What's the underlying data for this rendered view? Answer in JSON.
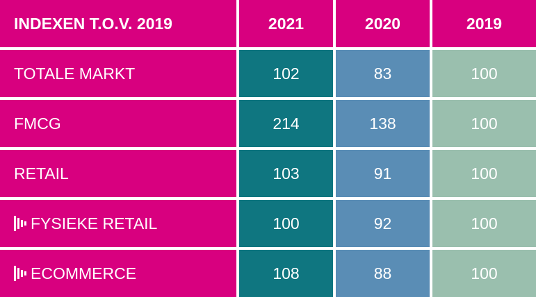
{
  "chart_data": {
    "type": "table",
    "title": "INDEXEN T.O.V. 2019",
    "columns": [
      "2021",
      "2020",
      "2019"
    ],
    "rows": [
      {
        "label": "TOTALE MARKT",
        "values": [
          "102",
          "83",
          "100"
        ],
        "icon": null
      },
      {
        "label": "FMCG",
        "values": [
          "214",
          "138",
          "100"
        ],
        "icon": null
      },
      {
        "label": "RETAIL",
        "values": [
          "103",
          "91",
          "100"
        ],
        "icon": null
      },
      {
        "label": "FYSIEKE RETAIL",
        "values": [
          "100",
          "92",
          "100"
        ],
        "icon": "bars-icon"
      },
      {
        "label": "ECOMMERCE",
        "values": [
          "108",
          "88",
          "100"
        ],
        "icon": "bars-icon"
      }
    ],
    "colors": {
      "label_bg": "#d8007f",
      "col_2021": "#0f7680",
      "col_2020": "#5a8db5",
      "col_2019": "#9abfae"
    }
  }
}
